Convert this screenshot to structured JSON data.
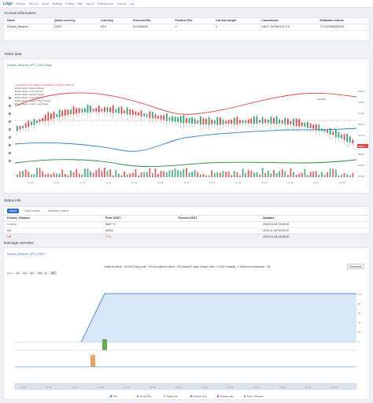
{
  "topbar": {
    "logo": "Logs",
    "items": [
      "Preview",
      "TB/1.0.1",
      "Quant",
      "Strategy",
      "Trading",
      "Help",
      "Sign in",
      "Trading count",
      "Console",
      "Log"
    ]
  },
  "account": {
    "title": "Account information",
    "headers": [
      "Name",
      "Quote currency",
      "Currency",
      "Closeout P&L",
      "Position P&L",
      "Current margin",
      "Commission",
      "Estimated returns"
    ],
    "row": [
      "Futures_Binance",
      "USDT",
      "BTC",
      "91.4098408",
      "0",
      "0",
      "USDT 78.9981171773",
      "77.0132365909993"
    ]
  },
  "ticker": {
    "title": "Ticker data",
    "symbol": "Futures_Binance_BTC_USDT.swap",
    "legend": [
      "CHARTER(7,14,0)NBC1,CHANDE2,CLOSE,14.7805,29",
      "EIStochastic Upward Bound",
      "EIStochastic Lower Bound",
      "EIStochastic Upward Target",
      "EIStochastic Lower Target",
      "EIStochastic Upward Short Target",
      "EIStochastic Lower Long Target"
    ],
    "indicator_label": "Indicator",
    "price_tag": "90811.7",
    "y_ticks": [
      "95000",
      "93000",
      "91000",
      "89000",
      "87000",
      "85000",
      "83000",
      "81000"
    ],
    "vol_ticks": [
      "2000",
      "1000"
    ],
    "x_ticks": [
      "11-18",
      "11-22",
      "11-26",
      "11-30",
      "12-04",
      "12-08",
      "12-12",
      "12-16",
      "12-20",
      "12-24",
      "12-28",
      "01-01",
      "01-05"
    ]
  },
  "status": {
    "title": "Status info",
    "tabs": [
      "Asset",
      "Open orders",
      "Schedule orders"
    ],
    "headers": [
      "Futures_Binance",
      "Price USDT",
      "Percent USDT",
      "Updates"
    ],
    "rows": [
      [
        "Current",
        "80877.9",
        "",
        "2025-01-05 23:59:00"
      ],
      [
        "Init",
        "80000",
        "",
        "2024-11-06 00:00:00"
      ],
      [
        "Diff",
        "77%",
        "",
        "2025-01-05 23:59:00"
      ]
    ]
  },
  "earnings": {
    "title": "Earnings overview",
    "symbol": "Futures_Binance_BTC_USDT",
    "summary": "Initial net value : 100000 Total profit : 0% Annualized returns : 0% (nearly 0 days) Sharpe ratio : 0.0153 Volatility : 0 Maximum drawdown : 0%",
    "fullscreen": "Fullscreen",
    "zoom_label": "Zoom",
    "zoom_buttons": [
      "1m",
      "3m",
      "6m",
      "YTD",
      "1y",
      "All"
    ],
    "zoom_active": "All",
    "right_ticks": [
      "100",
      "80",
      "60",
      "40",
      "20",
      "0"
    ],
    "legend": [
      "PNL",
      "Period PNL",
      "Trade limit",
      "Position limit",
      "Position ratio",
      "Asset Utilization"
    ],
    "x_ticks": [
      "11-18",
      "11-22",
      "11-26",
      "11-30",
      "12-04",
      "12-08",
      "12-12",
      "12-16",
      "12-20",
      "12-24",
      "12-28",
      "01-01",
      "01-05"
    ],
    "colors": {
      "pnl": "#2f6fd0",
      "period": "#6aa84f",
      "trade": "#f0a15e",
      "position": "#7a5cc4"
    }
  }
}
